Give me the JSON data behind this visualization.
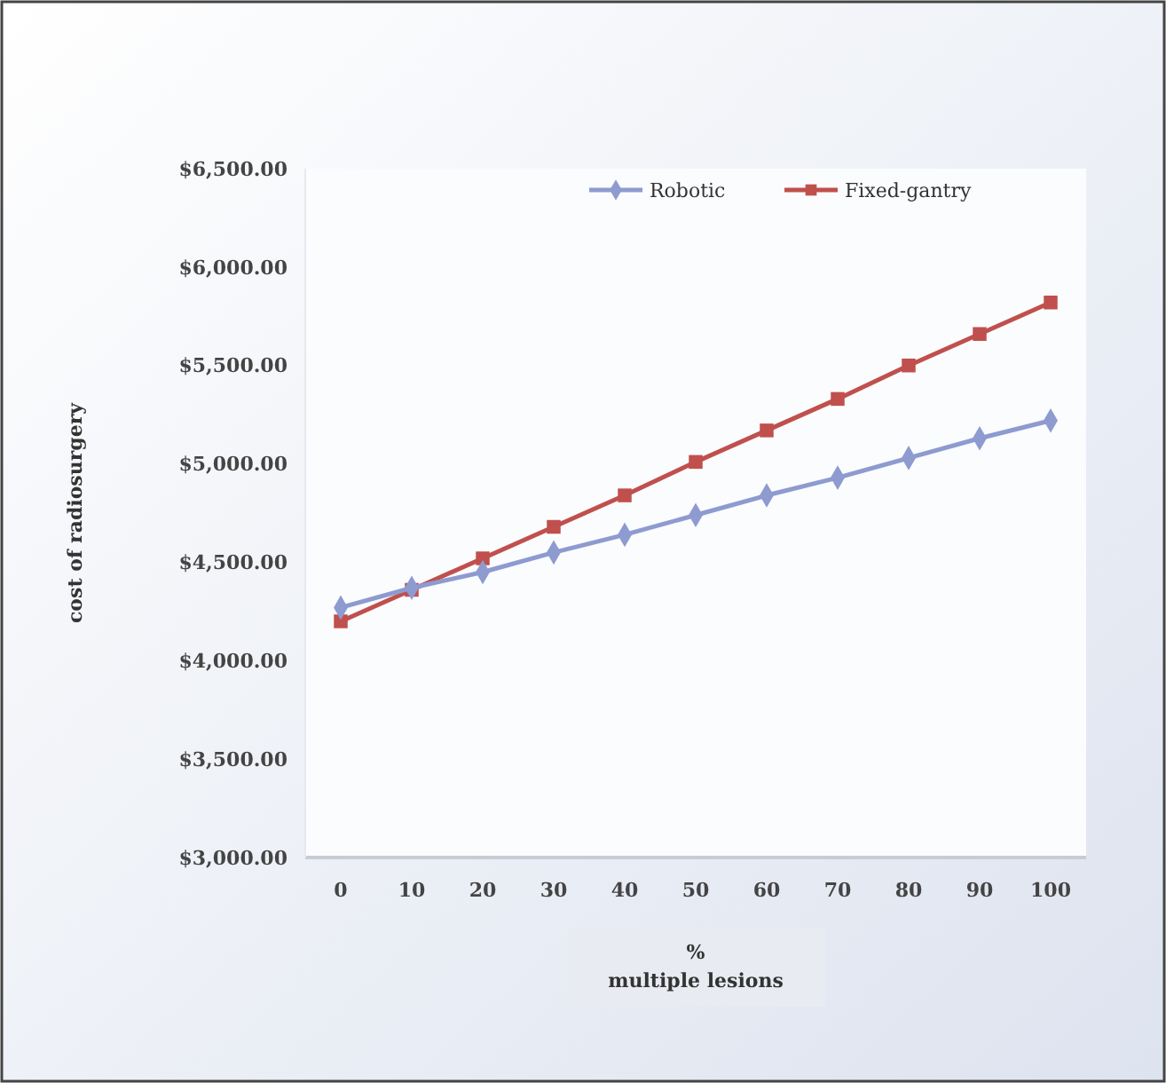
{
  "chart_data": {
    "type": "line",
    "xlabel": "%\nmultiple lesions",
    "ylabel": "cost of radiosurgery",
    "categories": [
      "0",
      "10",
      "20",
      "30",
      "40",
      "50",
      "60",
      "70",
      "80",
      "90",
      "100"
    ],
    "series": [
      {
        "name": "Robotic",
        "color": "#8e9bd0",
        "marker": "diamond",
        "values": [
          4270,
          4370,
          4450,
          4550,
          4640,
          4740,
          4840,
          4930,
          5030,
          5130,
          5220
        ]
      },
      {
        "name": "Fixed-gantry",
        "color": "#c0504d",
        "marker": "square",
        "values": [
          4200,
          4360,
          4520,
          4680,
          4840,
          5010,
          5170,
          5330,
          5500,
          5660,
          5820
        ]
      }
    ],
    "ylim": [
      3000,
      6500
    ],
    "yticks": [
      {
        "value": 3000,
        "label": "$3,000.00"
      },
      {
        "value": 3500,
        "label": "$3,500.00"
      },
      {
        "value": 4000,
        "label": "$4,000.00"
      },
      {
        "value": 4500,
        "label": "$4,500.00"
      },
      {
        "value": 5000,
        "label": "$5,000.00"
      },
      {
        "value": 5500,
        "label": "$5,500.00"
      },
      {
        "value": 6000,
        "label": "$6,000.00"
      },
      {
        "value": 6500,
        "label": "$6,500.00"
      }
    ],
    "legend": "top right",
    "grid": false
  }
}
